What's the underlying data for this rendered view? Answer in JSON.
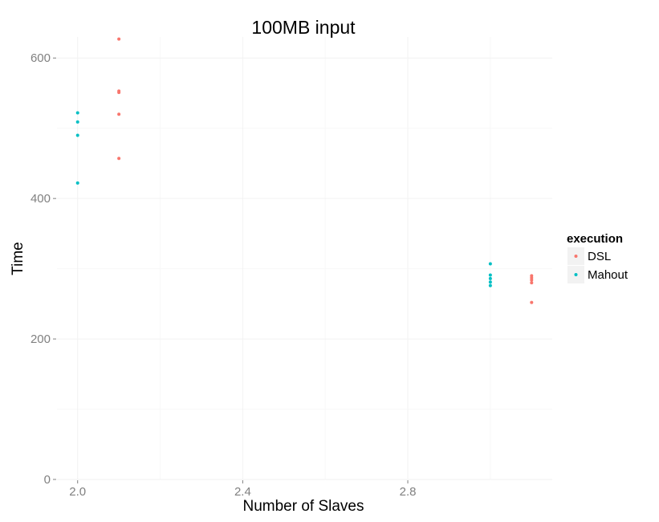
{
  "chart_data": {
    "type": "scatter",
    "title": "100MB input",
    "xlabel": "Number of Slaves",
    "ylabel": "Time",
    "xlim": [
      1.95,
      3.15
    ],
    "ylim": [
      0,
      630
    ],
    "x_ticks": [
      2.0,
      2.4,
      2.8
    ],
    "x_tick_labels": [
      "2.0",
      "2.4",
      "2.8"
    ],
    "y_ticks": [
      0,
      200,
      400,
      600
    ],
    "y_tick_labels": [
      "0",
      "200",
      "400",
      "600"
    ],
    "grid": true,
    "legend": {
      "title": "execution",
      "position": "right"
    },
    "series": [
      {
        "name": "DSL",
        "color": "#F8766D",
        "points": [
          {
            "x": 2.1,
            "y": 627
          },
          {
            "x": 2.1,
            "y": 553
          },
          {
            "x": 2.1,
            "y": 551
          },
          {
            "x": 2.1,
            "y": 520
          },
          {
            "x": 2.1,
            "y": 457
          },
          {
            "x": 3.1,
            "y": 290
          },
          {
            "x": 3.1,
            "y": 287
          },
          {
            "x": 3.1,
            "y": 284
          },
          {
            "x": 3.1,
            "y": 280
          },
          {
            "x": 3.1,
            "y": 252
          }
        ]
      },
      {
        "name": "Mahout",
        "color": "#00BFC4",
        "points": [
          {
            "x": 2.0,
            "y": 522
          },
          {
            "x": 2.0,
            "y": 509
          },
          {
            "x": 2.0,
            "y": 490
          },
          {
            "x": 2.0,
            "y": 422
          },
          {
            "x": 3.0,
            "y": 307
          },
          {
            "x": 3.0,
            "y": 291
          },
          {
            "x": 3.0,
            "y": 286
          },
          {
            "x": 3.0,
            "y": 281
          },
          {
            "x": 3.0,
            "y": 276
          }
        ]
      }
    ]
  }
}
